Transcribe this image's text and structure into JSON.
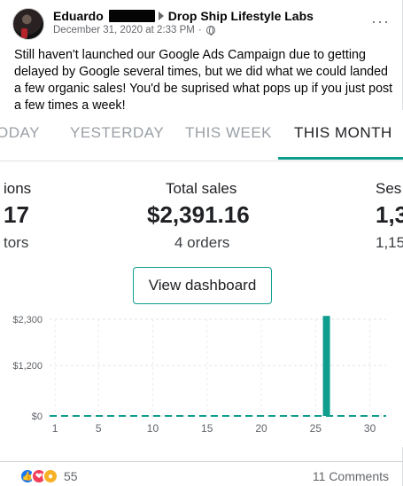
{
  "post": {
    "author": "Eduardo",
    "group": "Drop Ship Lifestyle Labs",
    "timestamp": "December 31, 2020 at 2:33 PM",
    "separator": "·",
    "more": "···",
    "caption": "Still haven't launched our Google Ads Campaign due to getting delayed by Google several times, but we did what we could landed a few organic sales! You'd be suprised what pops up if you just post a few times a week!"
  },
  "dashboard": {
    "tabs": [
      {
        "label": "ODAY",
        "active": false
      },
      {
        "label": "YESTERDAY",
        "active": false
      },
      {
        "label": "THIS WEEK",
        "active": false
      },
      {
        "label": "THIS MONTH",
        "active": true
      }
    ],
    "accent": "#0f9d8e",
    "stats": {
      "left_label": "ions",
      "left_value": "17",
      "left_sub": "tors",
      "center_label": "Total sales",
      "center_value": "$2,391.16",
      "center_sub": "4 orders",
      "right_label": "Ses",
      "right_value": "1,3",
      "right_sub": "1,15"
    },
    "view_button": "View dashboard"
  },
  "chart_data": {
    "type": "bar",
    "x": [
      1,
      2,
      3,
      4,
      5,
      6,
      7,
      8,
      9,
      10,
      11,
      12,
      13,
      14,
      15,
      16,
      17,
      18,
      19,
      20,
      21,
      22,
      23,
      24,
      25,
      26,
      27,
      28,
      29,
      30,
      31
    ],
    "values": [
      0,
      0,
      0,
      0,
      0,
      0,
      0,
      0,
      0,
      0,
      0,
      0,
      0,
      0,
      0,
      0,
      0,
      0,
      0,
      0,
      0,
      0,
      10,
      0,
      0,
      2380,
      0,
      0,
      0,
      0,
      0
    ],
    "xticks": [
      "1",
      "5",
      "10",
      "15",
      "20",
      "25",
      "30"
    ],
    "yticks": [
      "$2,300",
      "$1,200",
      "$0"
    ],
    "ylim": [
      0,
      2300
    ],
    "title": "",
    "xlabel": "",
    "ylabel": "",
    "grid": true,
    "color": "#0f9d8e"
  },
  "footer": {
    "reaction_count": "55",
    "comments": "11 Comments"
  }
}
